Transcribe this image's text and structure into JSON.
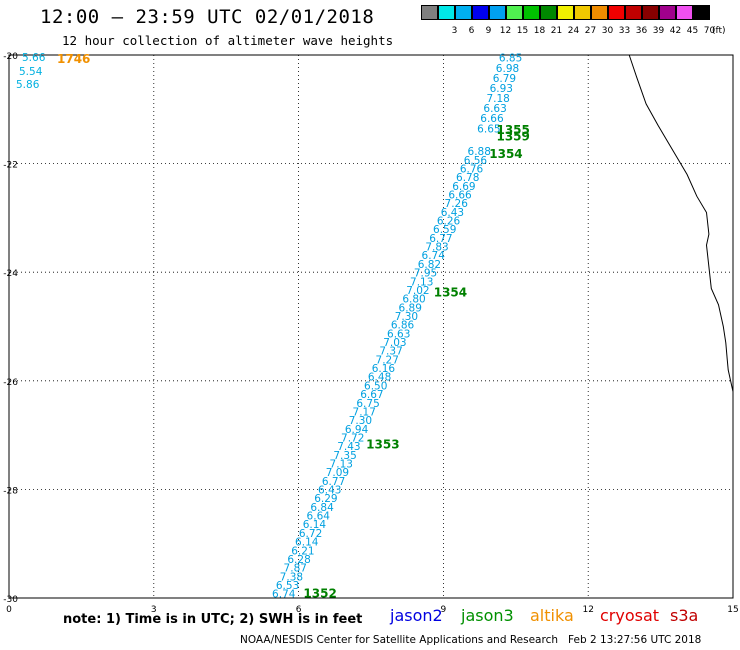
{
  "header": {
    "title": "12:00 – 23:59 UTC 02/01/2018",
    "subtitle": "12 hour collection of altimeter wave heights"
  },
  "scale": {
    "unit": "(ft)",
    "items": [
      {
        "label": "",
        "color": "#7f7f7f"
      },
      {
        "label": "3",
        "color": "#00e8e8"
      },
      {
        "label": "6",
        "color": "#00b0f0"
      },
      {
        "label": "9",
        "color": "#0000f0"
      },
      {
        "label": "12",
        "color": "#00a0f0"
      },
      {
        "label": "15",
        "color": "#50f050"
      },
      {
        "label": "18",
        "color": "#00c000"
      },
      {
        "label": "21",
        "color": "#008800"
      },
      {
        "label": "24",
        "color": "#f0f000"
      },
      {
        "label": "27",
        "color": "#f0c800"
      },
      {
        "label": "30",
        "color": "#f08c00"
      },
      {
        "label": "33",
        "color": "#f00000"
      },
      {
        "label": "36",
        "color": "#c00000"
      },
      {
        "label": "39",
        "color": "#880000"
      },
      {
        "label": "42",
        "color": "#a0008c"
      },
      {
        "label": "45",
        "color": "#f050f0"
      },
      {
        "label": "70",
        "color": "#000000"
      }
    ]
  },
  "map": {
    "lon_range": [
      0,
      15
    ],
    "lat_range": [
      -30,
      -20
    ],
    "x_ticks": [
      0,
      3,
      6,
      9,
      12,
      15
    ],
    "y_ticks": [
      -20,
      -22,
      -24,
      -26,
      -28,
      -30
    ],
    "grid": true,
    "track_color": "#00a0e0",
    "time_color": "#008000",
    "track_values": [
      "6.74",
      "6.53",
      "7.38",
      "7.87",
      "6.28",
      "6.21",
      "6.14",
      "6.72",
      "6.14",
      "6.64",
      "6.84",
      "6.29",
      "6.43",
      "6.77",
      "7.09",
      "7.13",
      "7.35",
      "7.43",
      "7.72",
      "6.94",
      "7.30",
      "7.17",
      "6.75",
      "6.67",
      "6.50",
      "6.48",
      "6.16",
      "7.27",
      "7.37",
      "7.03",
      "6.63",
      "6.86",
      "7.30",
      "6.89",
      "6.80",
      "7.02",
      "7.13",
      "7.95",
      "6.82",
      "6.74",
      "7.83",
      "6.77",
      "6.59",
      "6.26",
      "6.43",
      "7.26",
      "6.66",
      "6.69",
      "6.78",
      "6.76",
      "6.56",
      "6.88"
    ],
    "track_values_upper": [
      "6.65",
      "6.66",
      "6.63",
      "7.18",
      "6.93",
      "6.79",
      "6.98",
      "6.85"
    ],
    "times": [
      {
        "label": "1352",
        "lon": 6.1,
        "lat": -29.92
      },
      {
        "label": "1353",
        "lon": 7.4,
        "lat": -27.17
      },
      {
        "label": "1354",
        "lon": 8.8,
        "lat": -24.37
      },
      {
        "label": "1354",
        "lon": 9.95,
        "lat": -21.82
      },
      {
        "label": "1355",
        "lon": 10.1,
        "lat": -21.38
      },
      {
        "label": "1359",
        "lon": 10.1,
        "lat": -21.5
      }
    ],
    "corner": {
      "values": [
        "5.66",
        "5.54",
        "5.86"
      ],
      "time": "1746",
      "value_color": "#00b0e0",
      "time_color": "#f09000"
    }
  },
  "footer": {
    "note": "note: 1) Time is in UTC; 2) SWH is in feet",
    "satellites": [
      {
        "name": "jason2",
        "color": "#0000e0"
      },
      {
        "name": "jason3",
        "color": "#009000"
      },
      {
        "name": "altika",
        "color": "#f09000"
      },
      {
        "name": "cryosat",
        "color": "#e00000"
      },
      {
        "name": "s3a",
        "color": "#c00000"
      }
    ],
    "credit": "NOAA/NESDIS Center for Satellite Applications and Research",
    "timestamp": "Feb  2 13:27:56 UTC 2018"
  }
}
